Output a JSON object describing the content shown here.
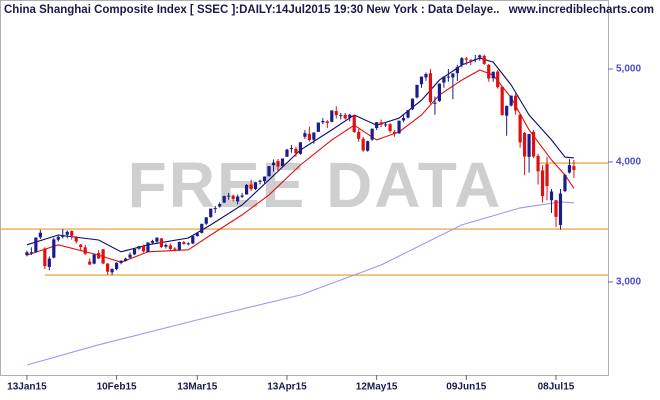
{
  "chart_data": {
    "type": "candlestick",
    "title": "China Shanghai Composite Index [ SSEC ]:DAILY:14Jul2015 19:30 New York : Data Delaye..",
    "source": "www.incrediblecharts.com",
    "watermark": "FREE DATA",
    "xlim": [
      -6,
      129.6
    ],
    "ylim": [
      2400,
      5900
    ],
    "log_y": true,
    "yticks": [
      {
        "value": 3000,
        "label": "3,000"
      },
      {
        "value": 4000,
        "label": "4,000"
      },
      {
        "value": 5000,
        "label": "5,000"
      }
    ],
    "xticks": [
      {
        "value": 0,
        "label": "13Jan15"
      },
      {
        "value": 20,
        "label": "10Feb15"
      },
      {
        "value": 38,
        "label": "13Mar15"
      },
      {
        "value": 58,
        "label": "13Apr15"
      },
      {
        "value": 78,
        "label": "12May15"
      },
      {
        "value": 98,
        "label": "09Jun15"
      },
      {
        "value": 118,
        "label": "08Jul15"
      }
    ],
    "up_color": "#1c1c8a",
    "down_color": "#e01010",
    "open": [
      3200,
      3215,
      3222,
      3340,
      3250,
      3110,
      3180,
      3320,
      3350,
      3360,
      3390,
      3340,
      3280,
      3260,
      3150,
      3135,
      3215,
      3245,
      3135,
      3070,
      3095,
      3140,
      3155,
      3180,
      3205,
      3250,
      3270,
      3225,
      3296,
      3305,
      3330,
      3265,
      3275,
      3250,
      3240,
      3300,
      3290,
      3290,
      3350,
      3375,
      3450,
      3505,
      3580,
      3595,
      3630,
      3690,
      3690,
      3640,
      3680,
      3700,
      3790,
      3750,
      3815,
      3820,
      3865,
      3970,
      4010,
      3960,
      4050,
      4130,
      4130,
      4080,
      4250,
      4280,
      4220,
      4300,
      4400,
      4410,
      4405,
      4520,
      4470,
      4480,
      4450,
      4470,
      4300,
      4230,
      4110,
      4220,
      4340,
      4400,
      4370,
      4380,
      4300,
      4285,
      4420,
      4450,
      4540,
      4670,
      4820,
      4900,
      4950,
      4600,
      4630,
      4840,
      4910,
      4900,
      4950,
      5050,
      5130,
      5110,
      5110,
      5140,
      5160,
      5050,
      4890,
      4970,
      4790,
      4470,
      4580,
      4690,
      4480,
      4290,
      4050,
      4300,
      4060,
      3920,
      3980,
      3650,
      3650,
      3440,
      3730,
      3900,
      3960
    ],
    "high": [
      3235,
      3260,
      3340,
      3400,
      3260,
      3190,
      3337,
      3352,
      3406,
      3395,
      3395,
      3350,
      3286,
      3280,
      3175,
      3208,
      3238,
      3245,
      3140,
      3100,
      3145,
      3160,
      3180,
      3220,
      3250,
      3270,
      3280,
      3300,
      3320,
      3340,
      3335,
      3290,
      3290,
      3260,
      3305,
      3310,
      3300,
      3350,
      3375,
      3450,
      3505,
      3578,
      3600,
      3632,
      3690,
      3715,
      3700,
      3700,
      3715,
      3795,
      3835,
      3815,
      3835,
      3865,
      3962,
      4025,
      4030,
      4035,
      4128,
      4168,
      4150,
      4195,
      4318,
      4356,
      4296,
      4398,
      4444,
      4422,
      4529,
      4572,
      4500,
      4500,
      4489,
      4480,
      4330,
      4250,
      4210,
      4335,
      4402,
      4430,
      4400,
      4390,
      4320,
      4418,
      4475,
      4530,
      4658,
      4814,
      4911,
      4958,
      5000,
      4680,
      4830,
      4911,
      5000,
      4950,
      5051,
      5146,
      5147,
      5120,
      5170,
      5178,
      5176,
      5060,
      4970,
      4990,
      4800,
      4580,
      4691,
      4720,
      4490,
      4300,
      4280,
      4320,
      4080,
      3970,
      4050,
      3750,
      3650,
      3750,
      3890,
      4030,
      4020
    ],
    "low": [
      3190,
      3200,
      3218,
      3325,
      3095,
      3085,
      3175,
      3305,
      3330,
      3330,
      3320,
      3290,
      3235,
      3200,
      3125,
      3130,
      3170,
      3131,
      3053,
      3050,
      3085,
      3130,
      3150,
      3175,
      3200,
      3240,
      3220,
      3220,
      3290,
      3290,
      3255,
      3250,
      3230,
      3230,
      3235,
      3280,
      3275,
      3285,
      3345,
      3370,
      3440,
      3500,
      3540,
      3585,
      3625,
      3655,
      3640,
      3615,
      3670,
      3700,
      3730,
      3740,
      3790,
      3790,
      3865,
      3910,
      3910,
      3950,
      4050,
      4090,
      4050,
      4070,
      4230,
      4200,
      4180,
      4300,
      4380,
      4340,
      4400,
      4440,
      4430,
      4430,
      4410,
      4290,
      4200,
      4100,
      4100,
      4210,
      4320,
      4350,
      4350,
      4290,
      4250,
      4280,
      4400,
      4440,
      4530,
      4660,
      4780,
      4860,
      4600,
      4480,
      4620,
      4780,
      4850,
      4650,
      4860,
      5020,
      5050,
      5045,
      5080,
      5100,
      5048,
      4850,
      4850,
      4770,
      4470,
      4260,
      4570,
      4480,
      4140,
      3876,
      3900,
      4040,
      3790,
      3630,
      3650,
      3540,
      3421,
      3400,
      3720,
      3890,
      3850
    ],
    "close": [
      3222,
      3222,
      3336,
      3376,
      3116,
      3173,
      3323,
      3343,
      3351,
      3383,
      3352,
      3305,
      3262,
      3210,
      3128,
      3204,
      3174,
      3136,
      3075,
      3095,
      3141,
      3157,
      3173,
      3203,
      3247,
      3268,
      3228,
      3298,
      3310,
      3336,
      3263,
      3279,
      3248,
      3241,
      3302,
      3286,
      3291,
      3349,
      3372,
      3449,
      3503,
      3577,
      3582,
      3617,
      3687,
      3691,
      3661,
      3683,
      3691,
      3786,
      3748,
      3810,
      3825,
      3863,
      3961,
      3995,
      3957,
      4034,
      4121,
      4135,
      4084,
      4194,
      4287,
      4217,
      4293,
      4398,
      4414,
      4393,
      4527,
      4476,
      4476,
      4441,
      4480,
      4298,
      4229,
      4112,
      4205,
      4333,
      4401,
      4375,
      4378,
      4308,
      4283,
      4417,
      4446,
      4530,
      4657,
      4813,
      4910,
      4941,
      4620,
      4612,
      4828,
      4910,
      4910,
      4947,
      5023,
      5131,
      5113,
      5106,
      5121,
      5166,
      5062,
      4887,
      4967,
      4786,
      4478,
      4576,
      4691,
      4527,
      4193,
      4053,
      4277,
      4053,
      3912,
      3687,
      3776,
      3727,
      3507,
      3709,
      3877,
      3970,
      3924
    ],
    "series": [
      {
        "color": "#0a0a6e",
        "x": [
          0,
          7,
          16,
          21,
          27,
          36,
          41,
          48,
          54,
          61,
          68,
          73,
          78,
          83,
          88,
          92,
          97,
          101,
          104,
          108,
          112,
          117,
          120,
          122
        ],
        "values": [
          3280,
          3358,
          3318,
          3225,
          3280,
          3334,
          3440,
          3608,
          3832,
          4117,
          4321,
          4478,
          4370,
          4445,
          4640,
          4869,
          5048,
          5133,
          5084,
          4812,
          4478,
          4218,
          4048,
          4040
        ]
      },
      {
        "color": "#e01010",
        "x": [
          0,
          7,
          16,
          21,
          27,
          36,
          41,
          48,
          54,
          61,
          68,
          73,
          78,
          83,
          88,
          92,
          97,
          101,
          104,
          108,
          112,
          117,
          120,
          122
        ],
        "values": [
          3200,
          3280,
          3200,
          3145,
          3225,
          3241,
          3358,
          3524,
          3697,
          3972,
          4218,
          4370,
          4218,
          4300,
          4478,
          4698,
          4869,
          4988,
          4928,
          4666,
          4321,
          4021,
          3877,
          3756
        ]
      },
      {
        "color": "#9a9af0",
        "x": [
          0,
          16,
          38,
          61,
          79,
          97,
          110,
          119,
          122
        ],
        "values": [
          2458,
          2580,
          2739,
          2908,
          3125,
          3440,
          3583,
          3635,
          3627
        ]
      }
    ],
    "levels": [
      {
        "value": 3406,
        "from": -6,
        "color": "#e39a2d"
      },
      {
        "value": 3050,
        "from": 4,
        "color": "#e39a2d"
      },
      {
        "value": 3990,
        "from": 114,
        "color": "#e39a2d"
      }
    ]
  }
}
